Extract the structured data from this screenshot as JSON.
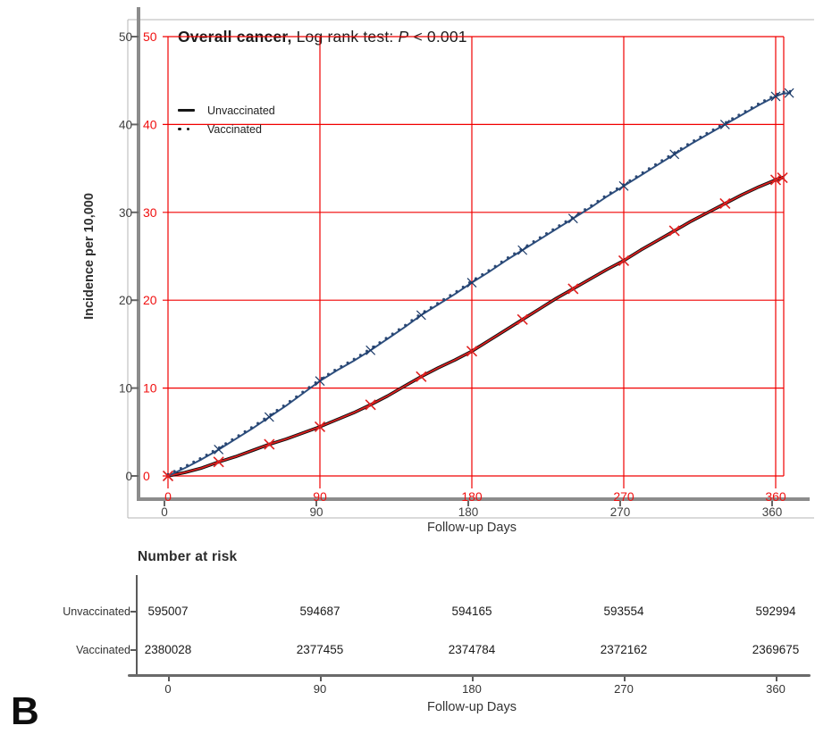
{
  "panel_label": "B",
  "colors": {
    "overlay_red": "#f10000",
    "red_label": "#f01010",
    "unvaccinated_black": "#0f0f0f",
    "unvaccinated_red_overlay": "#e02020",
    "vaccinated_blue": "#2e4f7e",
    "vaccinated_marker_blue": "#1c3a68",
    "axis_gray": "#8c8c8c",
    "frame_gray": "#b4b4b4",
    "tick_text_dark": "#404040"
  },
  "chart_data": {
    "type": "line",
    "title_bold": "Overall cancer,",
    "title_rest": " Log rank test: ",
    "title_stat_var": "P",
    "title_stat_value": " < 0.001",
    "xlabel": "Follow-up Days",
    "ylabel": "Incidence per 10,000",
    "xlim": [
      0,
      360
    ],
    "ylim": [
      0,
      50
    ],
    "x_ticks": [
      0,
      90,
      180,
      270,
      360
    ],
    "y_ticks": [
      0,
      10,
      20,
      30,
      40,
      50
    ],
    "grid": "red digitizing overlay grid on",
    "legend_position": "upper-left",
    "legend": [
      {
        "label": "Unvaccinated",
        "style": "solid"
      },
      {
        "label": "Vaccinated",
        "style": "dotted"
      }
    ],
    "series": [
      {
        "name": "Unvaccinated",
        "points": [
          [
            0,
            0
          ],
          [
            10,
            0.4
          ],
          [
            20,
            0.9
          ],
          [
            30,
            1.6
          ],
          [
            40,
            2.2
          ],
          [
            50,
            2.9
          ],
          [
            60,
            3.6
          ],
          [
            70,
            4.2
          ],
          [
            80,
            4.9
          ],
          [
            90,
            5.6
          ],
          [
            100,
            6.4
          ],
          [
            110,
            7.2
          ],
          [
            120,
            8.1
          ],
          [
            130,
            9.1
          ],
          [
            140,
            10.2
          ],
          [
            150,
            11.3
          ],
          [
            160,
            12.3
          ],
          [
            170,
            13.2
          ],
          [
            180,
            14.2
          ],
          [
            190,
            15.4
          ],
          [
            200,
            16.6
          ],
          [
            210,
            17.8
          ],
          [
            220,
            19.0
          ],
          [
            230,
            20.2
          ],
          [
            240,
            21.3
          ],
          [
            250,
            22.4
          ],
          [
            260,
            23.5
          ],
          [
            270,
            24.5
          ],
          [
            280,
            25.7
          ],
          [
            290,
            26.8
          ],
          [
            300,
            27.9
          ],
          [
            310,
            29.0
          ],
          [
            320,
            30.0
          ],
          [
            330,
            31.0
          ],
          [
            340,
            32.0
          ],
          [
            350,
            32.9
          ],
          [
            360,
            33.7
          ],
          [
            365,
            34.0
          ]
        ],
        "marker_days": [
          0,
          30,
          60,
          90,
          120,
          150,
          180,
          210,
          240,
          270,
          300,
          330,
          360,
          364
        ]
      },
      {
        "name": "Vaccinated",
        "points": [
          [
            0,
            0
          ],
          [
            10,
            0.9
          ],
          [
            20,
            1.9
          ],
          [
            30,
            3.0
          ],
          [
            40,
            4.2
          ],
          [
            50,
            5.4
          ],
          [
            60,
            6.7
          ],
          [
            70,
            8.0
          ],
          [
            80,
            9.4
          ],
          [
            90,
            10.8
          ],
          [
            100,
            12.0
          ],
          [
            110,
            13.1
          ],
          [
            120,
            14.3
          ],
          [
            130,
            15.6
          ],
          [
            140,
            16.9
          ],
          [
            150,
            18.3
          ],
          [
            160,
            19.5
          ],
          [
            170,
            20.7
          ],
          [
            180,
            22.0
          ],
          [
            190,
            23.2
          ],
          [
            200,
            24.5
          ],
          [
            210,
            25.7
          ],
          [
            220,
            26.9
          ],
          [
            230,
            28.1
          ],
          [
            240,
            29.3
          ],
          [
            250,
            30.5
          ],
          [
            260,
            31.8
          ],
          [
            270,
            33.0
          ],
          [
            280,
            34.2
          ],
          [
            290,
            35.4
          ],
          [
            300,
            36.6
          ],
          [
            310,
            37.8
          ],
          [
            320,
            38.9
          ],
          [
            330,
            40.0
          ],
          [
            340,
            41.1
          ],
          [
            350,
            42.2
          ],
          [
            360,
            43.2
          ],
          [
            364,
            43.5
          ],
          [
            369,
            43.6
          ]
        ],
        "marker_days": [
          0,
          30,
          60,
          90,
          120,
          150,
          180,
          210,
          240,
          270,
          300,
          330,
          360,
          368
        ]
      }
    ]
  },
  "risk_table": {
    "header": "Number at risk",
    "xlabel": "Follow-up Days",
    "x_ticks": [
      "0",
      "90",
      "180",
      "270",
      "360"
    ],
    "rows": [
      {
        "label": "Unvaccinated",
        "values": [
          "595007",
          "594687",
          "594165",
          "593554",
          "592994"
        ]
      },
      {
        "label": "Vaccinated",
        "values": [
          "2380028",
          "2377455",
          "2374784",
          "2372162",
          "2369675"
        ]
      }
    ]
  }
}
